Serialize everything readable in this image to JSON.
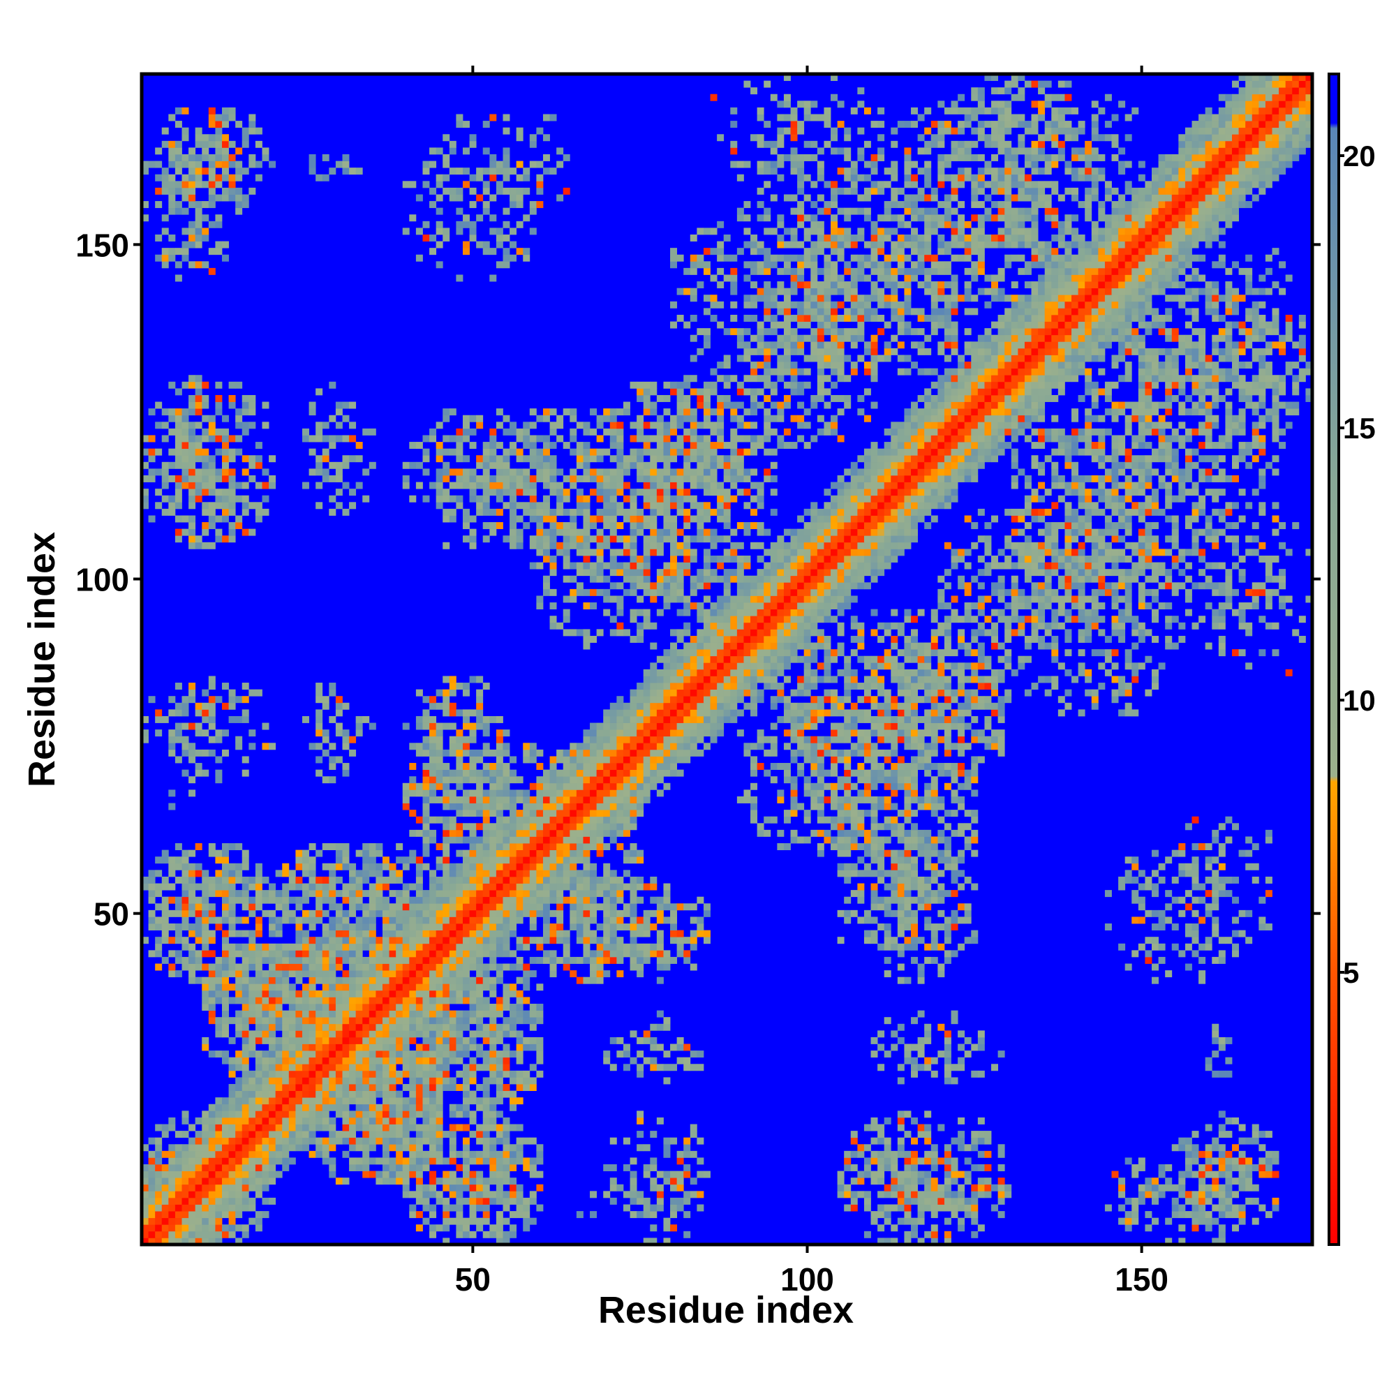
{
  "chart_data": {
    "type": "heatmap",
    "title": "",
    "xlabel": "Residue index",
    "ylabel": "Residue index",
    "n_residues": 175,
    "xlim": [
      1,
      175
    ],
    "ylim": [
      1,
      175
    ],
    "x_ticks": [
      50,
      100,
      150
    ],
    "y_ticks": [
      50,
      100,
      150
    ],
    "colorbar": {
      "ticks": [
        5,
        10,
        15,
        20
      ],
      "range": [
        0,
        21.5
      ],
      "stops": [
        {
          "value": 0,
          "color": "#ff0000"
        },
        {
          "value": 5,
          "color": "#ff5500"
        },
        {
          "value": 8.5,
          "color": "#ffa500"
        },
        {
          "value": 8.6,
          "color": "#9cb08c"
        },
        {
          "value": 14,
          "color": "#88a896"
        },
        {
          "value": 20.5,
          "color": "#5a86b8"
        },
        {
          "value": 20.6,
          "color": "#0000ff"
        },
        {
          "value": 21.5,
          "color": "#0000ff"
        }
      ]
    },
    "background_color": "#0000ff",
    "value_description": "pairwise residue distance; values above 20 shown as background",
    "contact_regions": [
      {
        "x": [
          1,
          20
        ],
        "y": [
          1,
          20
        ],
        "level": 0.7
      },
      {
        "x": [
          10,
          35
        ],
        "y": [
          25,
          45
        ],
        "level": 0.8
      },
      {
        "x": [
          25,
          45
        ],
        "y": [
          10,
          35
        ],
        "level": 0.8
      },
      {
        "x": [
          1,
          20
        ],
        "y": [
          40,
          60
        ],
        "level": 0.7
      },
      {
        "x": [
          40,
          60
        ],
        "y": [
          1,
          20
        ],
        "level": 0.7
      },
      {
        "x": [
          20,
          45
        ],
        "y": [
          35,
          60
        ],
        "level": 0.7
      },
      {
        "x": [
          35,
          60
        ],
        "y": [
          20,
          45
        ],
        "level": 0.7
      },
      {
        "x": [
          1,
          15
        ],
        "y": [
          65,
          85
        ],
        "level": 0.3
      },
      {
        "x": [
          25,
          33
        ],
        "y": [
          70,
          85
        ],
        "level": 0.3
      },
      {
        "x": [
          40,
          55
        ],
        "y": [
          55,
          85
        ],
        "level": 0.6
      },
      {
        "x": [
          55,
          85
        ],
        "y": [
          40,
          55
        ],
        "level": 0.6
      },
      {
        "x": [
          60,
          75
        ],
        "y": [
          50,
          70
        ],
        "level": 0.7
      },
      {
        "x": [
          1,
          15
        ],
        "y": [
          105,
          125
        ],
        "level": 0.5
      },
      {
        "x": [
          25,
          33
        ],
        "y": [
          110,
          125
        ],
        "level": 0.3
      },
      {
        "x": [
          40,
          55
        ],
        "y": [
          105,
          125
        ],
        "level": 0.5
      },
      {
        "x": [
          55,
          85
        ],
        "y": [
          100,
          125
        ],
        "level": 0.7
      },
      {
        "x": [
          70,
          95
        ],
        "y": [
          110,
          130
        ],
        "level": 0.6
      },
      {
        "x": [
          80,
          115
        ],
        "y": [
          130,
          155
        ],
        "level": 0.6
      },
      {
        "x": [
          90,
          125
        ],
        "y": [
          145,
          170
        ],
        "level": 0.4
      },
      {
        "x": [
          115,
          150
        ],
        "y": [
          150,
          175
        ],
        "level": 0.5
      },
      {
        "x": [
          120,
          145
        ],
        "y": [
          90,
          110
        ],
        "level": 0.6
      },
      {
        "x": [
          130,
          160
        ],
        "y": [
          100,
          140
        ],
        "level": 0.6
      },
      {
        "x": [
          145,
          175
        ],
        "y": [
          120,
          145
        ],
        "level": 0.5
      },
      {
        "x": [
          160,
          175
        ],
        "y": [
          85,
          110
        ],
        "level": 0.3
      },
      {
        "x": [
          90,
          110
        ],
        "y": [
          60,
          90
        ],
        "level": 0.6
      },
      {
        "x": [
          100,
          130
        ],
        "y": [
          75,
          95
        ],
        "level": 0.6
      },
      {
        "x": [
          105,
          125
        ],
        "y": [
          45,
          70
        ],
        "level": 0.6
      },
      {
        "x": [
          110,
          130
        ],
        "y": [
          25,
          35
        ],
        "level": 0.3
      },
      {
        "x": [
          105,
          130
        ],
        "y": [
          1,
          20
        ],
        "level": 0.7
      },
      {
        "x": [
          155,
          170
        ],
        "y": [
          1,
          20
        ],
        "level": 0.7
      },
      {
        "x": [
          155,
          170
        ],
        "y": [
          45,
          65
        ],
        "level": 0.4
      },
      {
        "x": [
          160,
          165
        ],
        "y": [
          25,
          35
        ],
        "level": 0.2
      },
      {
        "x": [
          70,
          85
        ],
        "y": [
          1,
          20
        ],
        "level": 0.4
      },
      {
        "x": [
          70,
          85
        ],
        "y": [
          25,
          35
        ],
        "level": 0.3
      },
      {
        "x": [
          1,
          15
        ],
        "y": [
          145,
          165
        ],
        "level": 0.6
      },
      {
        "x": [
          40,
          60
        ],
        "y": [
          145,
          165
        ],
        "level": 0.4
      },
      {
        "x": [
          25,
          33
        ],
        "y": [
          155,
          165
        ],
        "level": 0.2
      }
    ]
  }
}
